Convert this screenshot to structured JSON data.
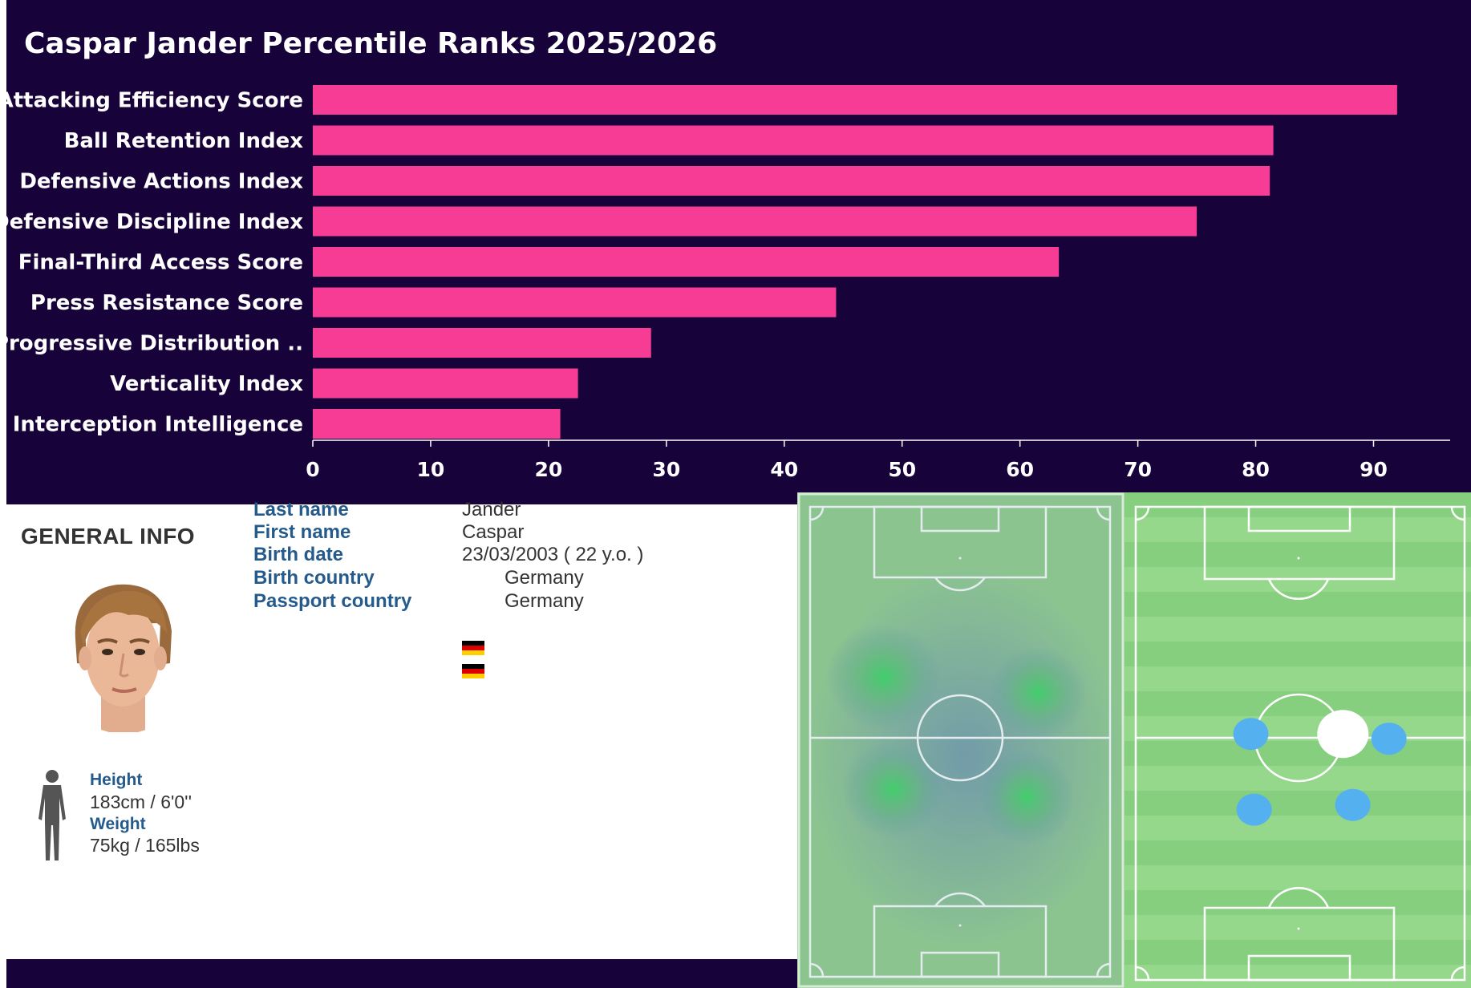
{
  "chart_data": {
    "type": "bar",
    "orientation": "horizontal",
    "title": "Caspar Jander Percentile Ranks 2025/2026",
    "categories": [
      "Attacking Efficiency Score",
      "Ball Retention Index",
      "Defensive Actions Index",
      "Defensive Discipline Index",
      "Final-Third Access Score",
      "Press Resistance Score",
      "Progressive Distribution ..",
      "Verticality Index",
      "Interception Intelligence"
    ],
    "values": [
      92,
      81.5,
      81.2,
      75,
      63.3,
      44.4,
      28.7,
      22.5,
      21
    ],
    "xticks": [
      0,
      10,
      20,
      30,
      40,
      50,
      60,
      70,
      80,
      90
    ],
    "xlim": [
      0,
      96.5
    ],
    "xlabel": "",
    "ylabel": "",
    "bar_color": "#f73c96",
    "background": "#170339"
  },
  "general_info": {
    "heading": "GENERAL INFO",
    "fields": [
      {
        "label": "Last name",
        "value": "Jander"
      },
      {
        "label": "First name",
        "value": "Caspar"
      },
      {
        "label": "Birth date",
        "value": "23/03/2003 ( 22 y.o. )"
      },
      {
        "label": "Birth country",
        "value": "Germany",
        "flag": "germany-flag"
      },
      {
        "label": "Passport country",
        "value": "Germany",
        "flag": "germany-flag"
      }
    ],
    "height_label": "Height",
    "height_value": "183cm / 6'0''",
    "weight_label": "Weight",
    "weight_value": "75kg / 165lbs",
    "photo": "player-portrait",
    "silhouette_icon": "person-silhouette-icon"
  },
  "heatmap": {
    "type": "pitch-heatmap",
    "hot_zones": [
      {
        "zone": "left-attacking-half-wing",
        "intensity": 0.85
      },
      {
        "zone": "right-attacking-half-wing",
        "intensity": 0.8
      },
      {
        "zone": "left-defensive-half-wing",
        "intensity": 0.75
      },
      {
        "zone": "right-defensive-half-wing",
        "intensity": 0.7
      }
    ]
  },
  "formation": {
    "type": "average-positions",
    "player_color": "#ffffff",
    "teammate_color": "#55b0f0",
    "markers": [
      {
        "role": "player",
        "pitch_x": 63,
        "pitch_y": 48
      },
      {
        "role": "teammate",
        "pitch_x": 35,
        "pitch_y": 48
      },
      {
        "role": "teammate",
        "pitch_x": 77,
        "pitch_y": 49
      },
      {
        "role": "teammate",
        "pitch_x": 36,
        "pitch_y": 64
      },
      {
        "role": "teammate",
        "pitch_x": 66,
        "pitch_y": 63
      }
    ]
  }
}
